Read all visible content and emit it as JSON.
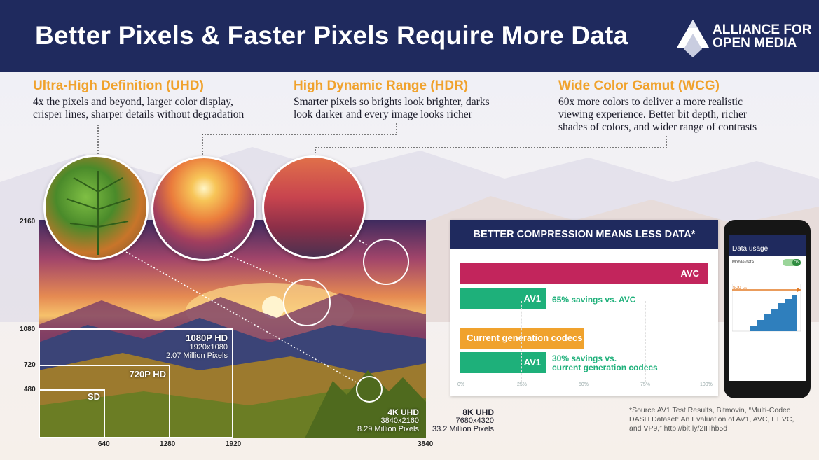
{
  "title": "Better Pixels & Faster Pixels Require More Data",
  "logo": {
    "line1": "ALLIANCE FOR",
    "line2": "OPEN MEDIA"
  },
  "features": [
    {
      "heading": "Ultra-High Definition (UHD)",
      "lines": [
        "4x the pixels and beyond, larger color display,",
        "crisper lines, sharper details without degradation"
      ]
    },
    {
      "heading": "High Dynamic Range (HDR)",
      "lines": [
        "Smarter pixels so brights look brighter, darks",
        "look darker and every image looks richer"
      ]
    },
    {
      "heading": "Wide Color Gamut (WCG)",
      "lines": [
        "60x more colors to deliver a more realistic",
        "viewing experience. Better bit depth, richer",
        "shades of colors, and wider range of contrasts"
      ]
    }
  ],
  "resolutions": {
    "hd1080": {
      "label": "1080P HD",
      "dims": "1920x1080",
      "pixels": "2.07 Million Pixels"
    },
    "hd720": {
      "label": "720P HD"
    },
    "sd": {
      "label": "SD"
    },
    "uhd4k": {
      "label": "4K UHD",
      "dims": "3840x2160",
      "pixels": "8.29 Million Pixels"
    },
    "uhd8k": {
      "label": "8K UHD",
      "dims": "7680x4320",
      "pixels": "33.2 Million Pixels"
    }
  },
  "axis": {
    "y": [
      "2160",
      "1080",
      "720",
      "480"
    ],
    "x": [
      "640",
      "1280",
      "1920",
      "3840"
    ]
  },
  "compression": {
    "heading": "BETTER COMPRESSION MEANS LESS DATA*",
    "rows": [
      {
        "label": "AVC",
        "value": 100,
        "color": "#c2255c",
        "note": ""
      },
      {
        "label": "AV1",
        "value": 35,
        "color": "#1eb07a",
        "note": "65% savings vs. AVC"
      },
      {
        "label": "Current generation codecs",
        "value": 50,
        "color": "#f0a22d",
        "note": ""
      },
      {
        "label": "AV1",
        "value": 35,
        "color": "#1eb07a",
        "note": "30% savings vs. current generation codecs",
        "note_lines": [
          "30% savings vs.",
          "current generation codecs"
        ]
      }
    ],
    "ticks": [
      "0%",
      "25%",
      "50%",
      "75%",
      "100%"
    ]
  },
  "phone": {
    "title": "Data usage",
    "setting": "Mobile data",
    "toggle": "ON",
    "marker": "500",
    "marker_unit": "MB"
  },
  "footnote": [
    "*Source AV1 Test Results, Bitmovin, “Multi-Codec",
    "DASH Dataset: An Evaluation of AV1, AVC, HEVC,",
    "and VP9,” http://bit.ly/2IHhb5d"
  ],
  "colors": {
    "navy": "#1f2a5e",
    "orange": "#f0a22d",
    "magenta": "#c2255c",
    "green": "#1eb07a"
  }
}
